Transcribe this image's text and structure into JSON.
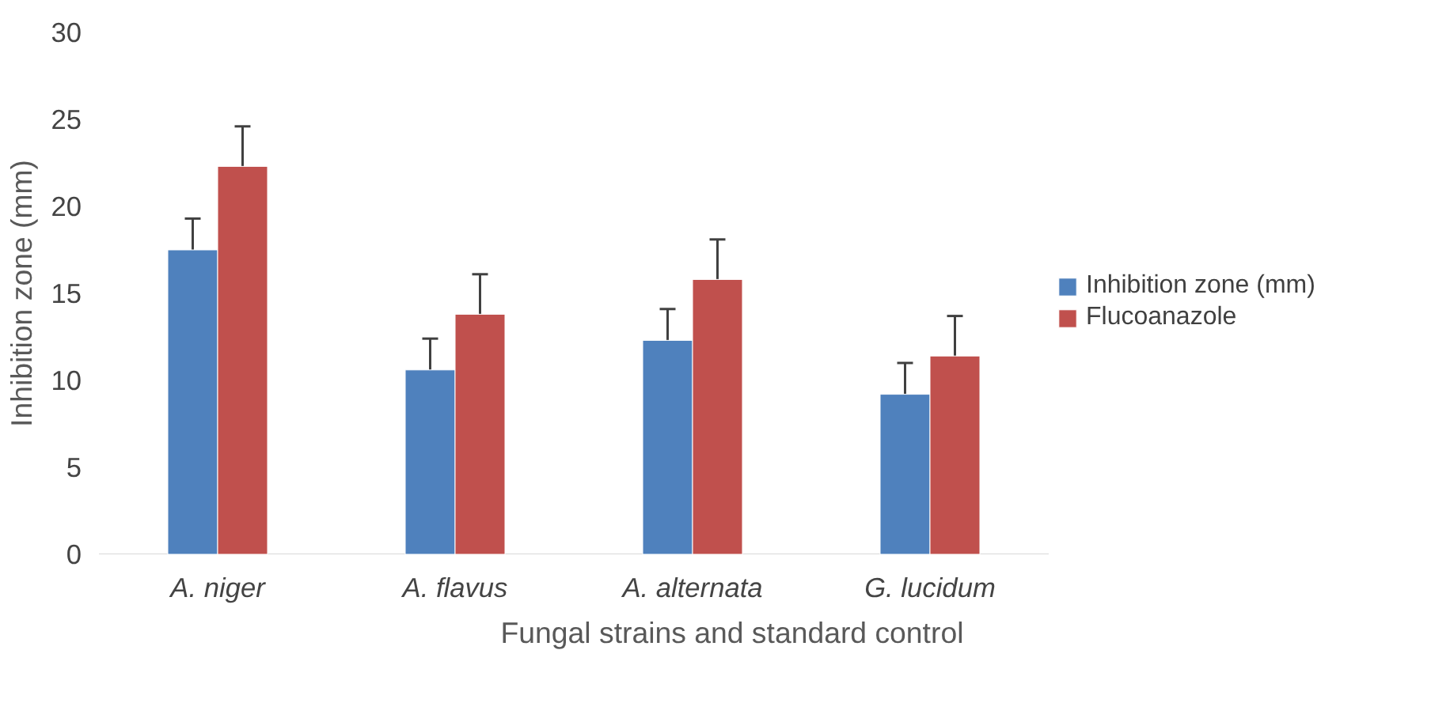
{
  "chart_data": {
    "type": "bar",
    "xlabel": "Fungal strains and standard control",
    "ylabel": "Inhibition zone (mm)",
    "categories": [
      "A. niger",
      "A. flavus",
      "A. alternata",
      "G. lucidum"
    ],
    "series": [
      {
        "name": "Inhibition zone (mm)",
        "color": "#4f81bd",
        "values": [
          17.5,
          10.6,
          12.3,
          9.2
        ],
        "errors": [
          1.8,
          1.8,
          1.8,
          1.8
        ]
      },
      {
        "name": "Flucoanazole",
        "color": "#c0504d",
        "values": [
          22.3,
          13.8,
          15.8,
          11.4
        ],
        "errors": [
          2.3,
          2.3,
          2.3,
          2.3
        ]
      }
    ],
    "ylim": [
      0,
      30
    ],
    "yticks": [
      0,
      5,
      10,
      15,
      20,
      25,
      30
    ],
    "grid": false,
    "legend": "right"
  }
}
